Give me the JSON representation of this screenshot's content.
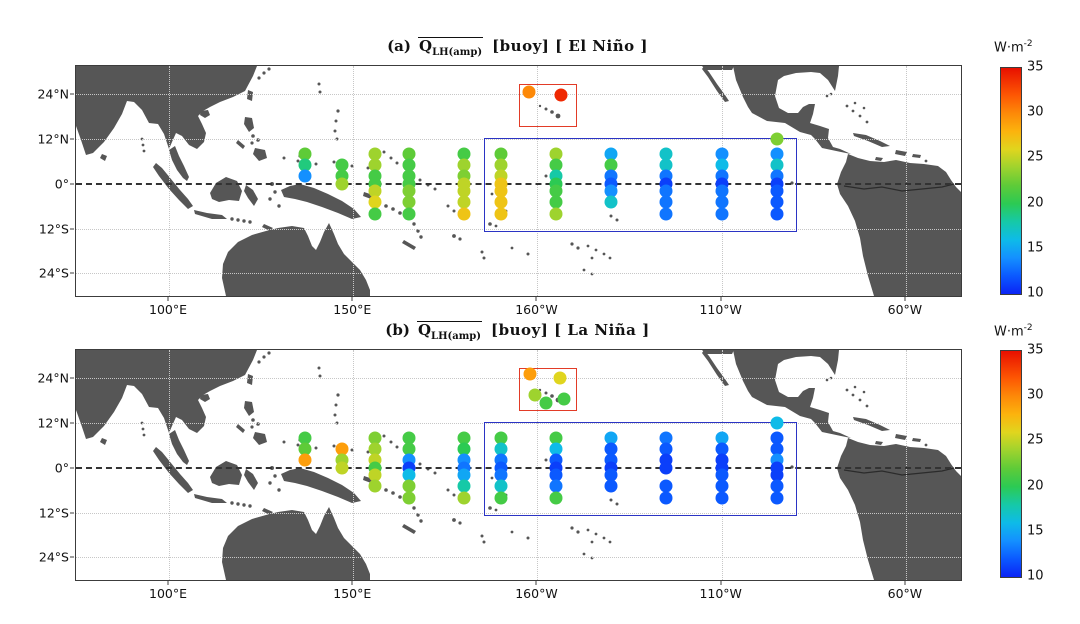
{
  "chart_data": {
    "type": "scatter",
    "description_title": "Mean amplitude of latent heat flux at buoy sites over the tropical Pacific",
    "colorbar": {
      "unit_main": "W·m",
      "unit_exp": "-2",
      "min": 10,
      "max": 35,
      "ticks": [
        35,
        30,
        25,
        20,
        15,
        10
      ],
      "colormap_stops": [
        [
          10,
          "#0b24f5"
        ],
        [
          12,
          "#0b59ff"
        ],
        [
          14,
          "#1490ff"
        ],
        [
          16,
          "#0ebbe8"
        ],
        [
          18,
          "#16c9a7"
        ],
        [
          20,
          "#2cca53"
        ],
        [
          22,
          "#5ecb38"
        ],
        [
          24,
          "#9ed32e"
        ],
        [
          26,
          "#e0d51e"
        ],
        [
          28,
          "#fcb30d"
        ],
        [
          30,
          "#fd8908"
        ],
        [
          32,
          "#fd5703"
        ],
        [
          35,
          "#e81000"
        ]
      ]
    },
    "map": {
      "lon_range_deg_east": [
        74.75,
        314.95
      ],
      "lat_range": [
        -30.1,
        31.6
      ],
      "equator_lat": 0,
      "xticks": [
        {
          "label": "100°E",
          "lon": 100
        },
        {
          "label": "150°E",
          "lon": 150
        },
        {
          "label": "160°W",
          "lon": 200
        },
        {
          "label": "110°W",
          "lon": 250
        },
        {
          "label": "60°W",
          "lon": 300
        }
      ],
      "yticks": [
        {
          "label": "24°N",
          "lat": 24
        },
        {
          "label": "12°N",
          "lat": 12
        },
        {
          "label": "0°",
          "lat": 0
        },
        {
          "label": "12°S",
          "lat": -12
        },
        {
          "label": "24°S",
          "lat": -24
        }
      ]
    },
    "panels": [
      {
        "id": "a",
        "title": {
          "index": "(a)",
          "symbol_main": "Q",
          "symbol_sub": "LH(amp)",
          "suffix": "[buoy]  [ El Niño ]"
        },
        "red_box": {
          "lon": [
            195.0,
            210.8
          ],
          "lat": [
            15.2,
            26.8
          ]
        },
        "blue_box": {
          "lon": [
            185.5,
            270.4
          ],
          "lat": [
            -13.0,
            12.2
          ]
        },
        "buoys": [
          [
            137,
            8,
            22
          ],
          [
            137,
            5,
            19
          ],
          [
            137,
            2,
            14
          ],
          [
            147,
            5,
            21
          ],
          [
            147,
            2,
            21
          ],
          [
            147,
            0,
            24
          ],
          [
            156,
            8,
            24
          ],
          [
            156,
            5,
            24
          ],
          [
            156,
            2,
            21
          ],
          [
            156,
            0,
            21
          ],
          [
            156,
            -2,
            25
          ],
          [
            156,
            -5,
            26
          ],
          [
            156,
            -8,
            21
          ],
          [
            165,
            8,
            22
          ],
          [
            165,
            5,
            21
          ],
          [
            165,
            2,
            21
          ],
          [
            165,
            0,
            21
          ],
          [
            165,
            -2,
            23
          ],
          [
            165,
            -5,
            23
          ],
          [
            165,
            -8,
            21
          ],
          [
            180,
            8,
            21
          ],
          [
            180,
            5,
            24
          ],
          [
            180,
            2,
            23
          ],
          [
            180,
            0,
            25
          ],
          [
            180,
            -2,
            25
          ],
          [
            180,
            -5,
            25
          ],
          [
            180,
            -8,
            27
          ],
          [
            190,
            8,
            22
          ],
          [
            190,
            5,
            24
          ],
          [
            190,
            2,
            25
          ],
          [
            190,
            0,
            27
          ],
          [
            190,
            -2,
            27
          ],
          [
            190,
            -5,
            27
          ],
          [
            190,
            -8,
            27
          ],
          [
            205,
            8,
            24
          ],
          [
            205,
            5,
            21
          ],
          [
            205,
            2,
            18
          ],
          [
            205,
            0,
            20
          ],
          [
            205,
            -2,
            21
          ],
          [
            205,
            -5,
            21
          ],
          [
            205,
            -8,
            24
          ],
          [
            220,
            8,
            15
          ],
          [
            220,
            5,
            21
          ],
          [
            220,
            2,
            13
          ],
          [
            220,
            0,
            12
          ],
          [
            220,
            -2,
            14
          ],
          [
            220,
            -5,
            17
          ],
          [
            235,
            8,
            17
          ],
          [
            235,
            5,
            17
          ],
          [
            235,
            2,
            13
          ],
          [
            235,
            0,
            11
          ],
          [
            235,
            -2,
            13
          ],
          [
            235,
            -5,
            13
          ],
          [
            235,
            -8,
            13
          ],
          [
            250,
            8,
            14
          ],
          [
            250,
            5,
            16
          ],
          [
            250,
            2,
            13
          ],
          [
            250,
            0,
            11
          ],
          [
            250,
            -2,
            13
          ],
          [
            250,
            -5,
            13
          ],
          [
            250,
            -8,
            13
          ],
          [
            265,
            12,
            23
          ],
          [
            265,
            8,
            14
          ],
          [
            265,
            5,
            17
          ],
          [
            265,
            2,
            13
          ],
          [
            265,
            0,
            11
          ],
          [
            265,
            -2,
            12
          ],
          [
            265,
            -5,
            12
          ],
          [
            265,
            -8,
            12
          ],
          [
            197.7,
            24.6,
            30
          ],
          [
            206.4,
            23.8,
            34
          ]
        ]
      },
      {
        "id": "b",
        "title": {
          "index": "(b)",
          "symbol_main": "Q",
          "symbol_sub": "LH(amp)",
          "suffix": "[buoy]  [ La Niña ]"
        },
        "red_box": {
          "lon": [
            195.0,
            210.8
          ],
          "lat": [
            15.2,
            26.8
          ]
        },
        "blue_box": {
          "lon": [
            185.5,
            270.4
          ],
          "lat": [
            -13.0,
            12.2
          ]
        },
        "buoys": [
          [
            137,
            8,
            21
          ],
          [
            137,
            5,
            22
          ],
          [
            137,
            2,
            29
          ],
          [
            147,
            5,
            29
          ],
          [
            147,
            2,
            24
          ],
          [
            147,
            0,
            25
          ],
          [
            156,
            8,
            23
          ],
          [
            156,
            5,
            24
          ],
          [
            156,
            2,
            25
          ],
          [
            156,
            0,
            21
          ],
          [
            156,
            -2,
            25
          ],
          [
            156,
            -5,
            24
          ],
          [
            165,
            8,
            21
          ],
          [
            165,
            5,
            21
          ],
          [
            165,
            2,
            14
          ],
          [
            165,
            0,
            11
          ],
          [
            165,
            -2,
            16
          ],
          [
            165,
            -5,
            23
          ],
          [
            165,
            -8,
            23
          ],
          [
            180,
            8,
            21
          ],
          [
            180,
            5,
            20
          ],
          [
            180,
            2,
            14
          ],
          [
            180,
            0,
            13
          ],
          [
            180,
            -2,
            15
          ],
          [
            180,
            -5,
            18
          ],
          [
            180,
            -8,
            24
          ],
          [
            190,
            8,
            21
          ],
          [
            190,
            5,
            17
          ],
          [
            190,
            2,
            13
          ],
          [
            190,
            0,
            12
          ],
          [
            190,
            -2,
            13
          ],
          [
            190,
            -5,
            17
          ],
          [
            190,
            -8,
            21
          ],
          [
            205,
            8,
            21
          ],
          [
            205,
            5,
            16
          ],
          [
            205,
            2,
            12
          ],
          [
            205,
            0,
            11
          ],
          [
            205,
            -2,
            12
          ],
          [
            205,
            -5,
            13
          ],
          [
            205,
            -8,
            21
          ],
          [
            220,
            8,
            15
          ],
          [
            220,
            5,
            12
          ],
          [
            220,
            2,
            12
          ],
          [
            220,
            0,
            11
          ],
          [
            220,
            -2,
            12
          ],
          [
            220,
            -5,
            12
          ],
          [
            235,
            8,
            13
          ],
          [
            235,
            5,
            12
          ],
          [
            235,
            2,
            11
          ],
          [
            235,
            0,
            11
          ],
          [
            235,
            -5,
            12
          ],
          [
            235,
            -8,
            12
          ],
          [
            250,
            8,
            15
          ],
          [
            250,
            5,
            12
          ],
          [
            250,
            2,
            11
          ],
          [
            250,
            0,
            11
          ],
          [
            250,
            -2,
            12
          ],
          [
            250,
            -5,
            12
          ],
          [
            250,
            -8,
            12
          ],
          [
            265,
            12,
            16
          ],
          [
            265,
            8,
            12
          ],
          [
            265,
            5,
            12
          ],
          [
            265,
            2,
            14
          ],
          [
            265,
            0,
            11
          ],
          [
            265,
            -2,
            11
          ],
          [
            265,
            -5,
            12
          ],
          [
            265,
            -8,
            12
          ],
          [
            198,
            25.2,
            29
          ],
          [
            206,
            24.1,
            26
          ],
          [
            199.3,
            19.5,
            24
          ],
          [
            202.3,
            17.4,
            21
          ],
          [
            207.2,
            18.5,
            21
          ]
        ]
      }
    ]
  }
}
